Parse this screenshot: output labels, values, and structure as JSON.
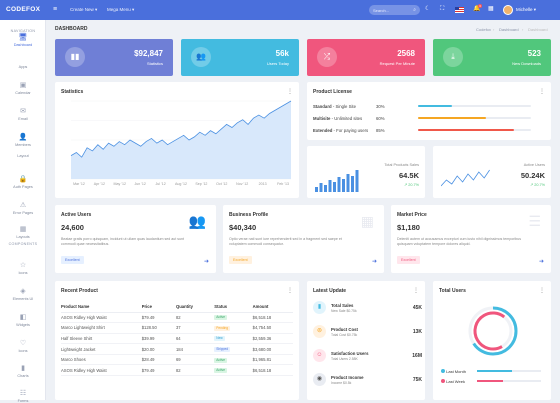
{
  "topbar": {
    "logo": "CODEFOX",
    "menu1": "Create New",
    "menu2": "Mega Menu",
    "search_placeholder": "Search...",
    "notif_count": "3",
    "username": "Michelle"
  },
  "sidebar": {
    "section_nav": "NAVIGATION",
    "section_components": "COMPONENTS",
    "items": [
      {
        "label": "Dashboard",
        "icon": "monitor-icon",
        "top": 10
      },
      {
        "label": "Apps",
        "icon": "apps-icon",
        "top": 35
      },
      {
        "label": "Calendar",
        "icon": "calendar-icon",
        "top": 56
      },
      {
        "label": "Email",
        "icon": "email-icon",
        "top": 82
      },
      {
        "label": "Members",
        "icon": "members-icon",
        "top": 108
      },
      {
        "label": "Layout",
        "icon": "layout-icon",
        "top": 124
      },
      {
        "label": "Auth Pages",
        "icon": "lock-icon",
        "top": 150
      },
      {
        "label": "Error Pages",
        "icon": "error-icon",
        "top": 176
      },
      {
        "label": "Layouts",
        "icon": "grid-icon",
        "top": 201
      },
      {
        "label": "Icons",
        "icon": "star-icon",
        "top": 236
      },
      {
        "label": "Elements UI",
        "icon": "elements-icon",
        "top": 262
      },
      {
        "label": "Widgets",
        "icon": "widget-icon",
        "top": 288
      },
      {
        "label": "Icons",
        "icon": "heart-icon",
        "top": 314
      },
      {
        "label": "Charts",
        "icon": "chart-icon",
        "top": 340
      },
      {
        "label": "Forms",
        "icon": "form-icon",
        "top": 366
      }
    ]
  },
  "page": {
    "title": "DASHBOARD",
    "breadcrumb": [
      "Codefox",
      "Dashboard",
      "Dashboard"
    ]
  },
  "stats": [
    {
      "value": "$92,847",
      "label": "Statistics",
      "icon": "chart-icon",
      "color": "#6f7fd6"
    },
    {
      "value": "56k",
      "label": "Users Today",
      "icon": "users-icon",
      "color": "#43bbe0"
    },
    {
      "value": "2568",
      "label": "Request Per Minute",
      "icon": "shuffle-icon",
      "color": "#f0567d"
    },
    {
      "value": "523",
      "label": "New Downloads",
      "icon": "download-icon",
      "color": "#51c77c"
    }
  ],
  "statistics": {
    "title": "Statistics",
    "xlabels": [
      "Mar '12",
      "Apr '12",
      "May '12",
      "Jun '12",
      "Jul '12",
      "Aug '12",
      "Sep '12",
      "Oct '12",
      "Nov '12",
      "2013",
      "Feb '13"
    ]
  },
  "license": {
    "title": "Product License",
    "rows": [
      {
        "name": "Standard",
        "desc": "Single Site",
        "pct": "30%",
        "value": 30,
        "color": "#43bbe0"
      },
      {
        "name": "Multisite",
        "desc": "Unlimited sites",
        "pct": "60%",
        "value": 60,
        "color": "#f5a623"
      },
      {
        "name": "Extended",
        "desc": "For paying users",
        "pct": "85%",
        "value": 85,
        "color": "#f0584a"
      }
    ]
  },
  "sales": {
    "label": "Total Products Sales",
    "value": "64.5K",
    "change": "20.7%"
  },
  "active": {
    "label": "Active Users",
    "value": "50.24K",
    "change": "20.7%"
  },
  "info": [
    {
      "title": "Active Users",
      "value": "24,600",
      "desc": "Beatae gratis porro quisquam, incidunt ut ullam quas laudantium sed aut sunt commodi quae necessitatibus.",
      "btn": "Excellent",
      "btncolor": "#e6f0ff",
      "btntext": "#4a6fdc",
      "icon": "users-icon"
    },
    {
      "title": "Business Profile",
      "value": "$40,340",
      "desc": "Optio verae nati sunt iure reprehenderit sed in a fragment sed saepe et voluptatem commodi consequatur.",
      "btn": "Excellent",
      "btncolor": "#fff1df",
      "btntext": "#f5a623",
      "icon": "building-icon"
    },
    {
      "title": "Market Price",
      "value": "$1,180",
      "desc": "Deleniti autem ut accusamus excepturi cum iusto nihil dignissimos temporibus quisquam voluptatem tempore dolores aliquid.",
      "btn": "Excellent",
      "btncolor": "#ffe6ec",
      "btntext": "#f0567d",
      "icon": "list-icon"
    }
  ],
  "recent": {
    "title": "Recent Product",
    "headers": [
      "Product Name",
      "Price",
      "Quantity",
      "Status",
      "Amount"
    ],
    "rows": [
      [
        "ASOS Ridley High Waist",
        "$79.49",
        "82",
        "Active",
        "$6,518.18",
        "#d9f5e3",
        "#3aa569"
      ],
      [
        "Marco Lightweight Shirt",
        "$128.50",
        "37",
        "Pending",
        "$4,754.50",
        "#fff1df",
        "#f5a623"
      ],
      [
        "Half Sleeve Shirt",
        "$39.99",
        "64",
        "New",
        "$2,559.36",
        "#e1f4fc",
        "#2d9fd0"
      ],
      [
        "Lightweight Jacket",
        "$20.00",
        "184",
        "Shipped",
        "$3,680.00",
        "#e6f0ff",
        "#4a6fdc"
      ],
      [
        "Marco Shoes",
        "$28.49",
        "69",
        "Active",
        "$1,965.81",
        "#d9f5e3",
        "#3aa569"
      ],
      [
        "ASOS Ridley High Waist",
        "$79.49",
        "82",
        "Active",
        "$6,518.18",
        "#d9f5e3",
        "#3aa569"
      ]
    ]
  },
  "latest": {
    "title": "Latest Update",
    "rows": [
      {
        "t": "Total Sales",
        "s": "New Sale $0.75k",
        "v": "45K",
        "icon": "chart-icon",
        "bg": "#e1f4fc",
        "fg": "#43bbe0"
      },
      {
        "t": "Product Cost",
        "s": "Total Cost $0.75k",
        "v": "13K",
        "icon": "cost-icon",
        "bg": "#fff1df",
        "fg": "#f5a623"
      },
      {
        "t": "Satisfaction Users",
        "s": "Total Users 2.58K",
        "v": "16M",
        "icon": "smile-icon",
        "bg": "#ffe6ec",
        "fg": "#f0567d"
      },
      {
        "t": "Product Income",
        "s": "Income $0.5k",
        "v": "75K",
        "icon": "income-icon",
        "bg": "#e9ecf2",
        "fg": "#555"
      }
    ]
  },
  "total": {
    "title": "Total Users",
    "legend": [
      {
        "label": "Last Month",
        "color": "#43bbe0"
      },
      {
        "label": "Last Week",
        "color": "#f0567d"
      }
    ]
  },
  "chart_data": {
    "type": "area",
    "title": "Statistics",
    "color": "#4a90e2",
    "values": [
      30,
      34,
      28,
      40,
      36,
      44,
      38,
      46,
      42,
      48,
      44,
      50,
      46,
      42,
      48,
      52,
      46,
      50,
      44,
      48,
      52,
      56,
      50,
      54,
      60,
      56,
      62,
      58,
      64,
      70,
      66,
      72,
      76,
      70,
      78,
      82,
      78,
      84,
      88,
      92,
      96,
      100
    ]
  }
}
